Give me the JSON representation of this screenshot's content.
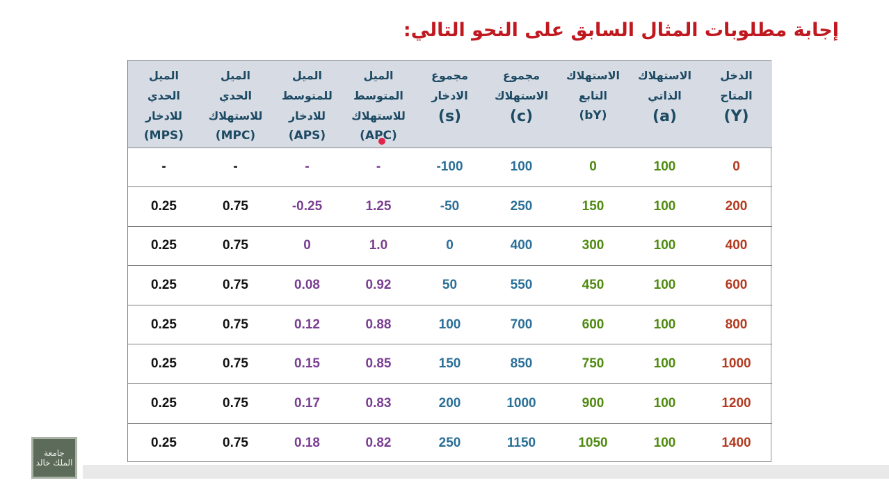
{
  "title": "إجابة مطلوبات المثال السابق على النحو التالي:",
  "columns": [
    {
      "line1": "الدخل",
      "line2": "المتاح",
      "symbol": "(Y)",
      "color": "#b23a1f"
    },
    {
      "line1": "الاستهلاك",
      "line2": "الذاتي",
      "symbol": "(a)",
      "color": "#4f8a10"
    },
    {
      "line1": "الاستهلاك",
      "line2": "التابع",
      "symbol": "(bY)",
      "color": "#4f8a10"
    },
    {
      "line1": "مجموع",
      "line2": "الاستهلاك",
      "symbol": "(c)",
      "color": "#2a6f97"
    },
    {
      "line1": "مجموع",
      "line2": "الادخار",
      "symbol": "(s)",
      "color": "#2a6f97"
    },
    {
      "line1": "الميل",
      "line2": "المتوسط",
      "line3": "للاستهلاك",
      "symbol": "(APC)",
      "color": "#7a3e91"
    },
    {
      "line1": "الميل",
      "line2": "للمتوسط",
      "line3": "للادخار",
      "symbol": "(APS)",
      "color": "#7a3e91"
    },
    {
      "line1": "الميل",
      "line2": "الحدي",
      "line3": "للاستهلاك",
      "symbol": "(MPC)",
      "color": "#111111"
    },
    {
      "line1": "الميل",
      "line2": "الحدي",
      "line3": "للادخار",
      "symbol": "(MPS)",
      "color": "#111111"
    }
  ],
  "rows": [
    [
      "0",
      "100",
      "0",
      "100",
      "-100",
      "-",
      "-",
      "-",
      "-"
    ],
    [
      "200",
      "100",
      "150",
      "250",
      "-50",
      "1.25",
      "-0.25",
      "0.75",
      "0.25"
    ],
    [
      "400",
      "100",
      "300",
      "400",
      "0",
      "1.0",
      "0",
      "0.75",
      "0.25"
    ],
    [
      "600",
      "100",
      "450",
      "550",
      "50",
      "0.92",
      "0.08",
      "0.75",
      "0.25"
    ],
    [
      "800",
      "100",
      "600",
      "700",
      "100",
      "0.88",
      "0.12",
      "0.75",
      "0.25"
    ],
    [
      "1000",
      "100",
      "750",
      "850",
      "150",
      "0.85",
      "0.15",
      "0.75",
      "0.25"
    ],
    [
      "1200",
      "100",
      "900",
      "1000",
      "200",
      "0.83",
      "0.17",
      "0.75",
      "0.25"
    ],
    [
      "1400",
      "100",
      "1050",
      "1150",
      "250",
      "0.82",
      "0.18",
      "0.75",
      "0.25"
    ]
  ],
  "logo": {
    "line1": "جامعة",
    "line2": "الملك خالد"
  }
}
